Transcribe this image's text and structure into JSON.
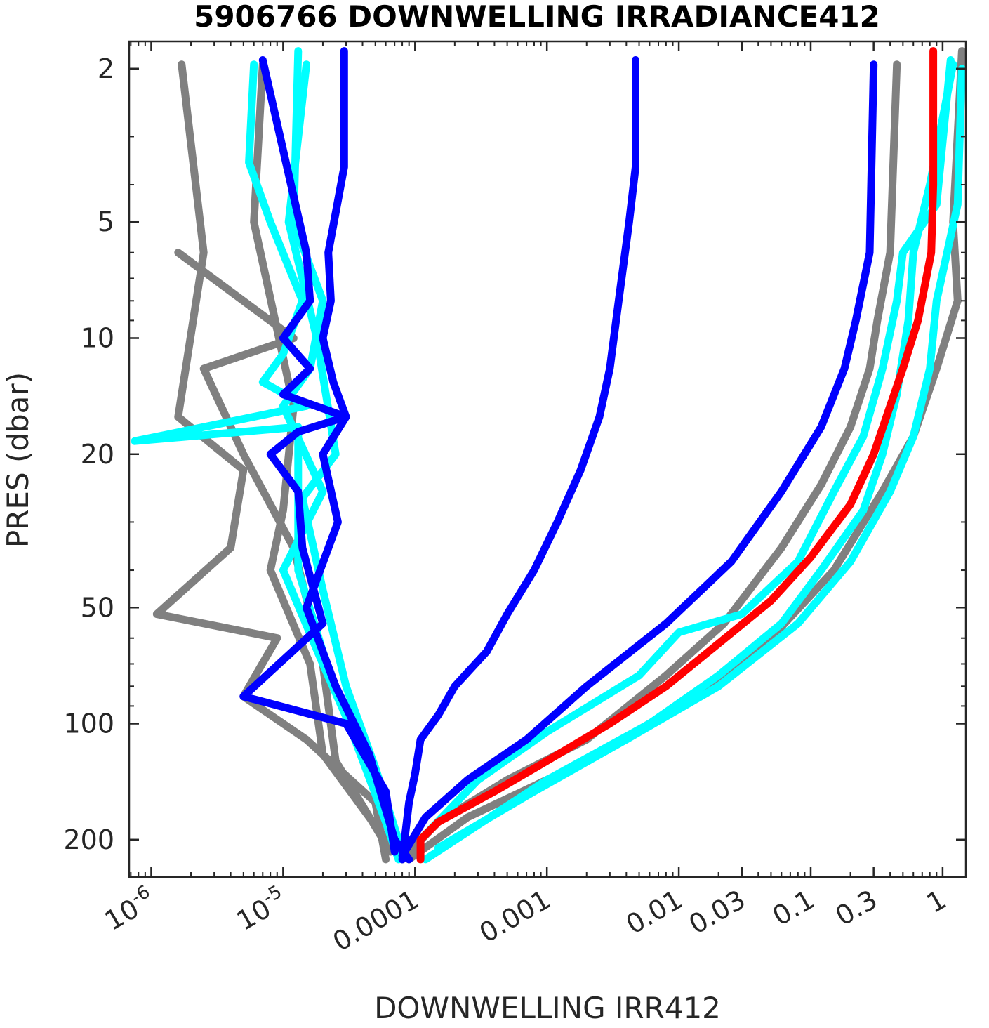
{
  "chart_data": {
    "type": "line",
    "title": "5906766  DOWNWELLING IRRADIANCE412",
    "xlabel": "DOWNWELLING IRR412",
    "ylabel": "PRES (dbar)",
    "x_scale": "log",
    "y_scale": "log",
    "y_reversed": true,
    "xlim": [
      6.8e-07,
      1.5
    ],
    "ylim": [
      1.7,
      250
    ],
    "grid": false,
    "legend": "none",
    "x_ticks": [
      {
        "value": 1e-06,
        "mantissa": "10",
        "exp": "-6"
      },
      {
        "value": 1e-05,
        "mantissa": "10",
        "exp": "-5"
      },
      {
        "value": 0.0001,
        "label": "0.0001"
      },
      {
        "value": 0.001,
        "label": "0.001"
      },
      {
        "value": 0.01,
        "label": "0.01"
      },
      {
        "value": 0.03,
        "label": "0.03"
      },
      {
        "value": 0.1,
        "label": "0.1"
      },
      {
        "value": 0.3,
        "label": "0.3"
      },
      {
        "value": 1,
        "label": "1"
      }
    ],
    "y_ticks": [
      {
        "value": 2,
        "label": "2"
      },
      {
        "value": 5,
        "label": "5"
      },
      {
        "value": 10,
        "label": "10"
      },
      {
        "value": 20,
        "label": "20"
      },
      {
        "value": 50,
        "label": "50"
      },
      {
        "value": 100,
        "label": "100"
      },
      {
        "value": 200,
        "label": "200"
      }
    ],
    "colors": {
      "gray": "#808080",
      "cyan": "#00ffff",
      "blue": "#0000ff",
      "red": "#ff0000"
    },
    "series": [
      {
        "color": "#808080",
        "points": [
          [
            1.7e-06,
            1.95
          ],
          [
            2.5e-06,
            6
          ],
          [
            1.6e-06,
            16
          ],
          [
            5e-06,
            22
          ],
          [
            4e-06,
            35
          ],
          [
            1.1e-06,
            52
          ],
          [
            9e-06,
            60
          ],
          [
            5e-06,
            85
          ],
          [
            1.5e-05,
            110
          ],
          [
            5e-05,
            160
          ],
          [
            6e-05,
            225
          ]
        ]
      },
      {
        "color": "#808080",
        "points": [
          [
            7e-06,
            1.95
          ],
          [
            6e-06,
            5
          ],
          [
            1.2e-05,
            15
          ],
          [
            1e-05,
            28
          ],
          [
            8e-06,
            40
          ],
          [
            1.6e-05,
            70
          ],
          [
            2e-05,
            120
          ],
          [
            6e-05,
            200
          ]
        ]
      },
      {
        "color": "#808080",
        "points": [
          [
            1.6e-06,
            6
          ],
          [
            1.2e-05,
            10
          ],
          [
            2.5e-06,
            12
          ],
          [
            5e-06,
            20
          ],
          [
            1.2e-05,
            35
          ],
          [
            2e-05,
            70
          ],
          [
            2.5e-05,
            125
          ],
          [
            6.5e-05,
            215
          ]
        ]
      },
      {
        "color": "#808080",
        "points": [
          [
            0.45,
            1.95
          ],
          [
            0.4,
            6
          ],
          [
            0.32,
            9
          ],
          [
            0.28,
            12
          ],
          [
            0.2,
            17
          ],
          [
            0.12,
            24
          ],
          [
            0.06,
            35
          ],
          [
            0.022,
            55
          ],
          [
            0.008,
            75
          ],
          [
            0.002,
            110
          ],
          [
            0.0005,
            140
          ],
          [
            0.00015,
            180
          ],
          [
            8e-05,
            225
          ]
        ]
      },
      {
        "color": "#808080",
        "points": [
          [
            1.4,
            1.8
          ],
          [
            1.2,
            5
          ],
          [
            1.3,
            8
          ],
          [
            0.9,
            12
          ],
          [
            0.6,
            18
          ],
          [
            0.35,
            25
          ],
          [
            0.15,
            40
          ],
          [
            0.05,
            60
          ],
          [
            0.01,
            90
          ],
          [
            0.002,
            125
          ],
          [
            0.00025,
            175
          ],
          [
            9e-05,
            225
          ]
        ]
      },
      {
        "color": "#00ffff",
        "points": [
          [
            6e-06,
            1.95
          ],
          [
            5.5e-06,
            3.5
          ],
          [
            8e-06,
            5
          ],
          [
            1.4e-05,
            8
          ],
          [
            1e-05,
            11
          ],
          [
            7e-06,
            13
          ],
          [
            1.5e-05,
            15
          ],
          [
            7.5e-07,
            18.5
          ],
          [
            1.3e-05,
            17
          ],
          [
            1.3e-05,
            40
          ],
          [
            2e-05,
            65
          ],
          [
            3.5e-05,
            110
          ],
          [
            6e-05,
            180
          ],
          [
            7.5e-05,
            225
          ]
        ]
      },
      {
        "color": "#00ffff",
        "points": [
          [
            1.3e-05,
            1.8
          ],
          [
            1.2e-05,
            5
          ],
          [
            2e-05,
            8
          ],
          [
            1.6e-05,
            12
          ],
          [
            1e-05,
            15
          ],
          [
            2e-05,
            25
          ],
          [
            1e-05,
            40
          ],
          [
            2e-05,
            70
          ],
          [
            4e-05,
            120
          ],
          [
            7e-05,
            200
          ]
        ]
      },
      {
        "color": "#00ffff",
        "points": [
          [
            1.5e-05,
            1.95
          ],
          [
            1.1e-05,
            5
          ],
          [
            1.8e-05,
            10
          ],
          [
            2.5e-05,
            20
          ],
          [
            1.4e-05,
            26
          ],
          [
            2e-05,
            45
          ],
          [
            3e-05,
            80
          ],
          [
            5e-05,
            130
          ],
          [
            8e-05,
            215
          ]
        ]
      },
      {
        "color": "#00ffff",
        "points": [
          [
            1.15,
            1.9
          ],
          [
            0.9,
            4.5
          ],
          [
            0.5,
            6
          ],
          [
            0.45,
            8
          ],
          [
            0.35,
            12
          ],
          [
            0.25,
            18
          ],
          [
            0.15,
            25
          ],
          [
            0.08,
            38
          ],
          [
            0.03,
            52
          ],
          [
            0.01,
            58
          ],
          [
            0.005,
            75
          ],
          [
            0.001,
            105
          ],
          [
            0.0003,
            140
          ],
          [
            0.00011,
            200
          ]
        ]
      },
      {
        "color": "#00ffff",
        "points": [
          [
            1.4,
            2
          ],
          [
            1.3,
            4.5
          ],
          [
            0.9,
            8
          ],
          [
            0.8,
            12
          ],
          [
            0.6,
            18
          ],
          [
            0.4,
            25
          ],
          [
            0.2,
            38
          ],
          [
            0.08,
            55
          ],
          [
            0.02,
            80
          ],
          [
            0.004,
            110
          ],
          [
            0.0008,
            150
          ],
          [
            0.00015,
            210
          ]
        ]
      },
      {
        "color": "#00ffff",
        "points": [
          [
            1.2,
            1.95
          ],
          [
            0.8,
            4
          ],
          [
            0.6,
            6
          ],
          [
            0.55,
            9
          ],
          [
            0.45,
            14
          ],
          [
            0.35,
            20
          ],
          [
            0.25,
            28
          ],
          [
            0.12,
            40
          ],
          [
            0.06,
            55
          ],
          [
            0.02,
            75
          ],
          [
            0.006,
            100
          ],
          [
            0.001,
            140
          ],
          [
            0.00012,
            225
          ]
        ]
      },
      {
        "color": "#0000ff",
        "points": [
          [
            7e-06,
            1.9
          ],
          [
            1.5e-05,
            6
          ],
          [
            1.6e-05,
            8
          ],
          [
            1e-05,
            10
          ],
          [
            1.6e-05,
            12
          ],
          [
            1e-05,
            14
          ],
          [
            3e-05,
            16
          ],
          [
            1.3e-05,
            17.5
          ],
          [
            8e-06,
            20
          ],
          [
            1.3e-05,
            25
          ],
          [
            1.4e-05,
            35
          ],
          [
            2e-05,
            55
          ],
          [
            5e-06,
            85
          ],
          [
            3e-05,
            100
          ],
          [
            6e-05,
            150
          ],
          [
            7e-05,
            215
          ]
        ]
      },
      {
        "color": "#0000ff",
        "points": [
          [
            2.9e-05,
            1.8
          ],
          [
            2.9e-05,
            3.6
          ],
          [
            2.2e-05,
            6
          ],
          [
            2.3e-05,
            8
          ],
          [
            2e-05,
            10
          ],
          [
            2.4e-05,
            13
          ],
          [
            3e-05,
            16
          ],
          [
            2e-05,
            20
          ],
          [
            2.6e-05,
            30
          ],
          [
            1.5e-05,
            50
          ],
          [
            2.5e-05,
            80
          ],
          [
            4.5e-05,
            120
          ],
          [
            7e-05,
            200
          ],
          [
            9e-05,
            225
          ]
        ]
      },
      {
        "color": "#0000ff",
        "points": [
          [
            0.0047,
            1.9
          ],
          [
            0.0047,
            3.6
          ],
          [
            0.0042,
            5
          ],
          [
            0.0035,
            8
          ],
          [
            0.003,
            12
          ],
          [
            0.0025,
            16
          ],
          [
            0.0018,
            22
          ],
          [
            0.0012,
            30
          ],
          [
            0.0008,
            40
          ],
          [
            0.0005,
            52
          ],
          [
            0.00035,
            65
          ],
          [
            0.0002,
            80
          ],
          [
            0.00015,
            95
          ],
          [
            0.00011,
            110
          ],
          [
            0.0001,
            135
          ],
          [
            9e-05,
            160
          ],
          [
            8e-05,
            225
          ]
        ]
      },
      {
        "color": "#0000ff",
        "points": [
          [
            0.3,
            1.95
          ],
          [
            0.28,
            6
          ],
          [
            0.22,
            9
          ],
          [
            0.18,
            12
          ],
          [
            0.12,
            17
          ],
          [
            0.06,
            25
          ],
          [
            0.025,
            38
          ],
          [
            0.008,
            55
          ],
          [
            0.002,
            80
          ],
          [
            0.0007,
            110
          ],
          [
            0.00025,
            140
          ],
          [
            0.00012,
            175
          ],
          [
            8e-05,
            220
          ]
        ]
      },
      {
        "color": "#ff0000",
        "points": [
          [
            0.85,
            1.8
          ],
          [
            0.85,
            4
          ],
          [
            0.82,
            6
          ],
          [
            0.65,
            9
          ],
          [
            0.5,
            12
          ],
          [
            0.4,
            15
          ],
          [
            0.3,
            20
          ],
          [
            0.2,
            27
          ],
          [
            0.1,
            37
          ],
          [
            0.05,
            48
          ],
          [
            0.02,
            62
          ],
          [
            0.008,
            80
          ],
          [
            0.003,
            100
          ],
          [
            0.001,
            125
          ],
          [
            0.0004,
            150
          ],
          [
            0.00015,
            180
          ],
          [
            0.00011,
            200
          ],
          [
            0.00011,
            225
          ]
        ]
      }
    ]
  }
}
